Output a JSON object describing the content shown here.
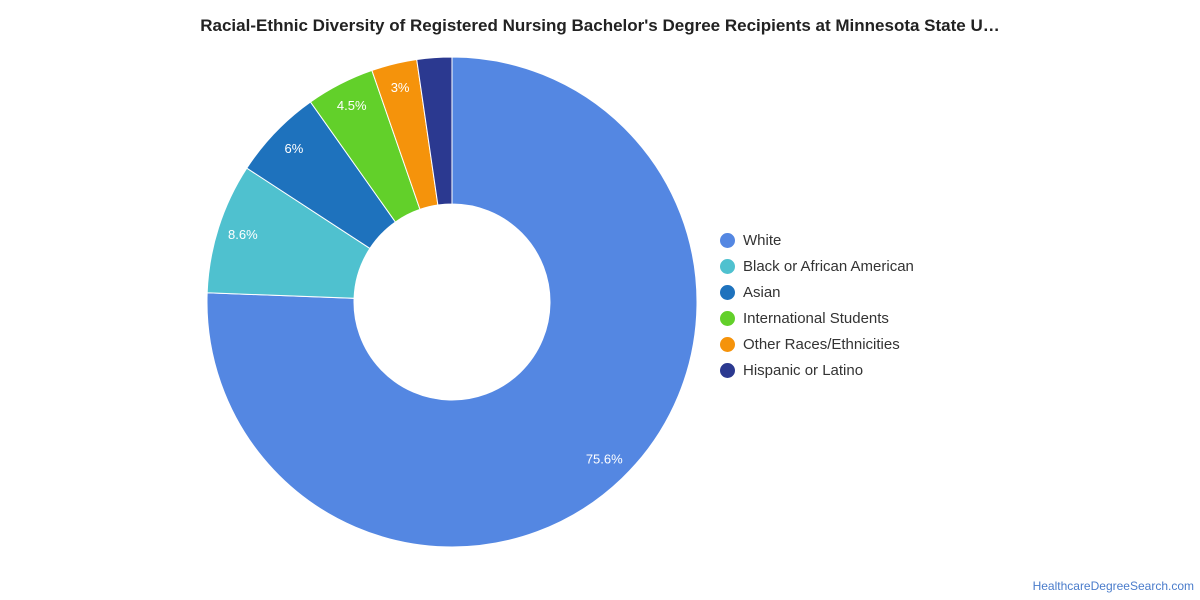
{
  "chart_data": {
    "type": "pie",
    "style": "donut",
    "title": "Racial-Ethnic Diversity of Registered Nursing Bachelor's Degree Recipients at Minnesota State U…",
    "legend_position": "right",
    "slices": [
      {
        "label": "White",
        "value": 75.6,
        "display": "75.6%",
        "color": "#5487e2"
      },
      {
        "label": "Black or African American",
        "value": 8.6,
        "display": "8.6%",
        "color": "#4fc1cf"
      },
      {
        "label": "Asian",
        "value": 6.0,
        "display": "6%",
        "color": "#1e72bd"
      },
      {
        "label": "International Students",
        "value": 4.5,
        "display": "4.5%",
        "color": "#62d02a"
      },
      {
        "label": "Other Races/Ethnicities",
        "value": 3.0,
        "display": "3%",
        "color": "#f5930b"
      },
      {
        "label": "Hispanic or Latino",
        "value": 2.3,
        "display": "",
        "color": "#2b3990"
      }
    ]
  },
  "footer": {
    "credit": "HealthcareDegreeSearch.com"
  }
}
